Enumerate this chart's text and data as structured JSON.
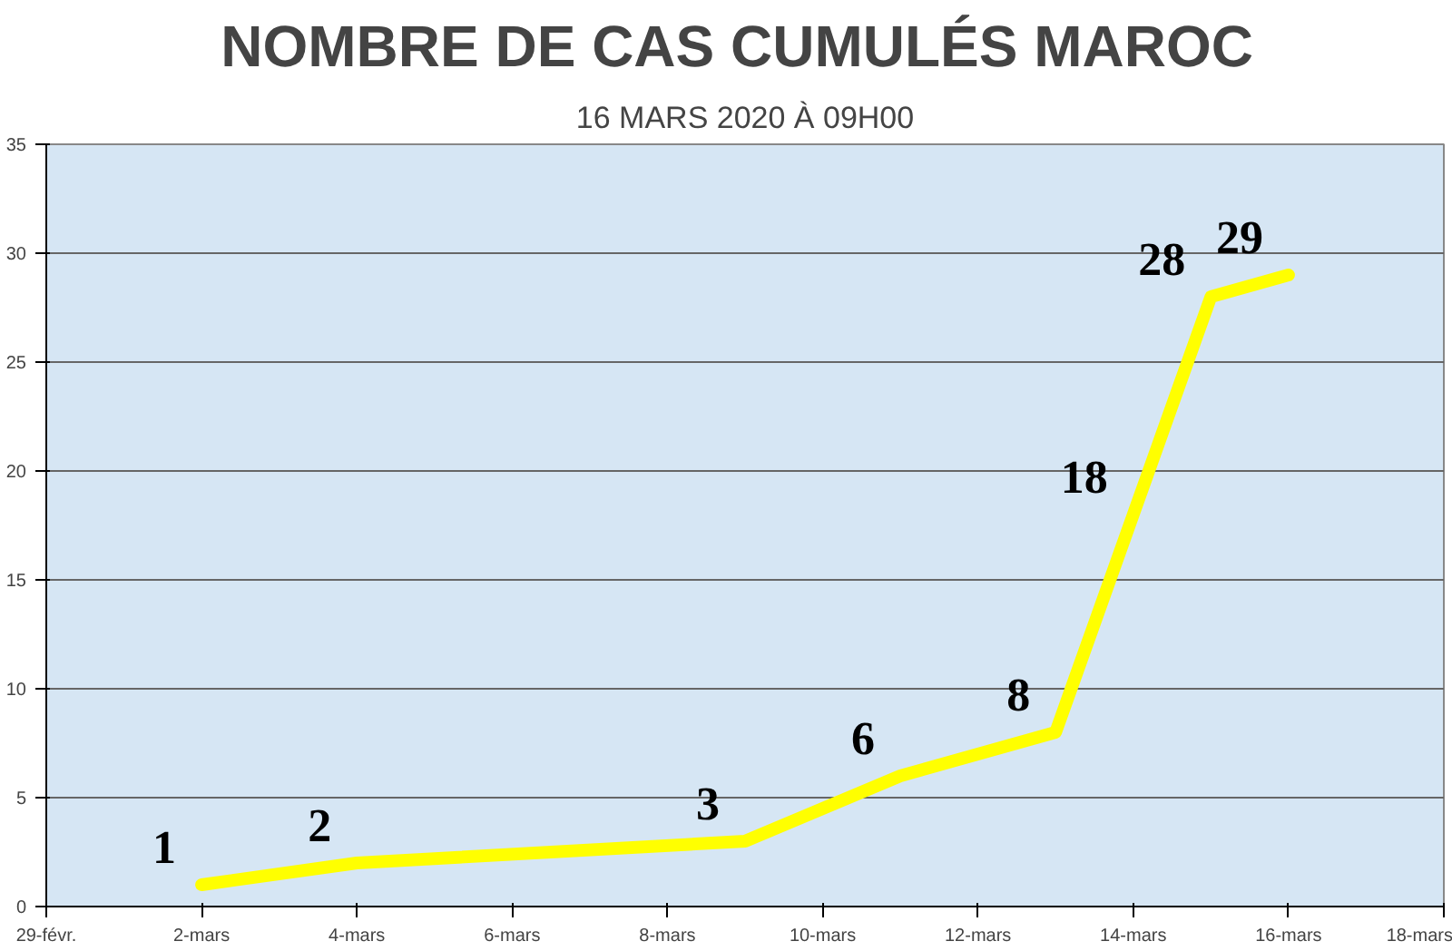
{
  "chart_data": {
    "type": "line",
    "title": "NOMBRE DE CAS CUMULÉS  MAROC",
    "subtitle": "16 MARS 2020 À 09H00",
    "x": [
      "2020-03-02",
      "2020-03-04",
      "2020-03-09",
      "2020-03-11",
      "2020-03-13",
      "2020-03-14",
      "2020-03-15",
      "2020-03-16"
    ],
    "series": [
      {
        "color": "#ffff00",
        "values": [
          1,
          2,
          3,
          6,
          8,
          18,
          28,
          29
        ]
      }
    ],
    "data_labels": true,
    "marker": "none",
    "line_style": "solid",
    "grid": "y",
    "xlim": [
      "2020-02-29",
      "2020-03-18"
    ],
    "xticks": [
      {
        "value": "2020-02-29",
        "label": "29-févr."
      },
      {
        "value": "2020-03-02",
        "label": "2-mars"
      },
      {
        "value": "2020-03-04",
        "label": "4-mars"
      },
      {
        "value": "2020-03-06",
        "label": "6-mars"
      },
      {
        "value": "2020-03-08",
        "label": "8-mars"
      },
      {
        "value": "2020-03-10",
        "label": "10-mars"
      },
      {
        "value": "2020-03-12",
        "label": "12-mars"
      },
      {
        "value": "2020-03-14",
        "label": "14-mars"
      },
      {
        "value": "2020-03-16",
        "label": "16-mars"
      },
      {
        "value": "2020-03-18",
        "label": "18-mars"
      }
    ],
    "ylim": [
      0,
      35
    ],
    "yticks": [
      0,
      5,
      10,
      15,
      20,
      25,
      30,
      35
    ]
  }
}
